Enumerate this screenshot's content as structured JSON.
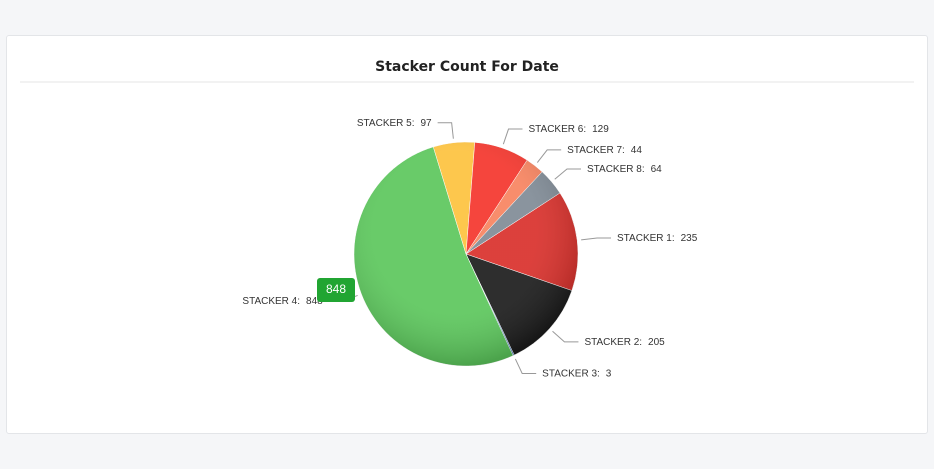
{
  "chart_data": {
    "type": "pie",
    "title": "Stacker Count For Date",
    "categories": [
      "STACKER 1:",
      "STACKER 2:",
      "STACKER 3:",
      "STACKER 4:",
      "STACKER 5:",
      "STACKER 6:",
      "STACKER 7:",
      "STACKER 8:"
    ],
    "values": [
      235,
      205,
      3,
      848,
      97,
      129,
      44,
      64
    ],
    "colors": [
      "#d9302b",
      "#1c1c1c",
      "#4a7fc0",
      "#5cc75c",
      "#fdc23e",
      "#f4352c",
      "#f7835f",
      "#808b96"
    ]
  }
}
